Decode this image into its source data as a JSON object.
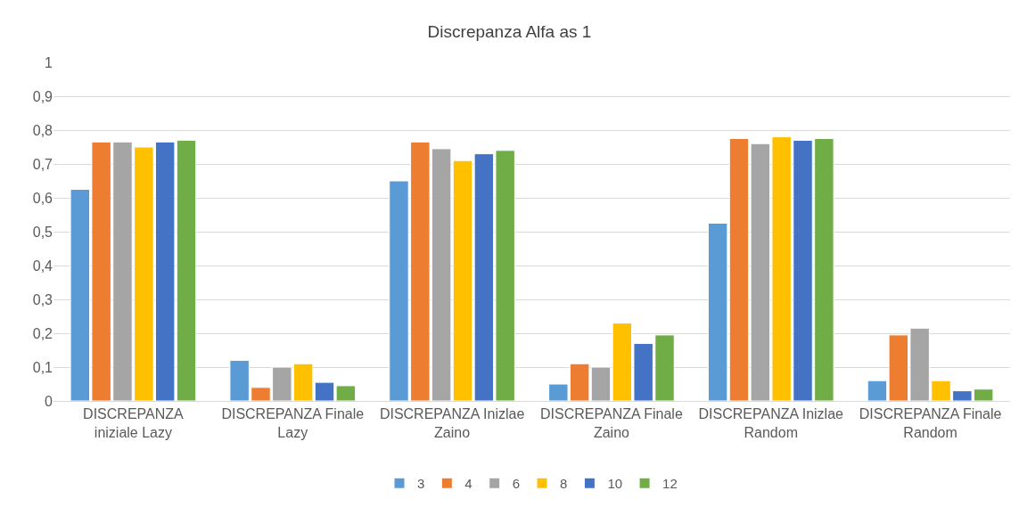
{
  "chart_data": {
    "type": "bar",
    "title": "Discrepanza Alfa as 1",
    "categories": [
      "DISCREPANZA\niniziale Lazy",
      "DISCREPANZA Finale\nLazy",
      "DISCREPANZA Inizlae\nZaino",
      "DISCREPANZA Finale\nZaino",
      "DISCREPANZA Inizlae\nRandom",
      "DISCREPANZA Finale\nRandom"
    ],
    "series": [
      {
        "name": "3",
        "color": "#5b9bd5",
        "values": [
          0.625,
          0.12,
          0.65,
          0.05,
          0.525,
          0.06
        ]
      },
      {
        "name": "4",
        "color": "#ed7d31",
        "values": [
          0.765,
          0.04,
          0.765,
          0.11,
          0.775,
          0.195
        ]
      },
      {
        "name": "6",
        "color": "#a5a5a5",
        "values": [
          0.765,
          0.1,
          0.745,
          0.1,
          0.76,
          0.215
        ]
      },
      {
        "name": "8",
        "color": "#ffc000",
        "values": [
          0.75,
          0.11,
          0.71,
          0.23,
          0.78,
          0.06
        ]
      },
      {
        "name": "10",
        "color": "#4472c4",
        "values": [
          0.765,
          0.055,
          0.73,
          0.17,
          0.77,
          0.03
        ]
      },
      {
        "name": "12",
        "color": "#70ad47",
        "values": [
          0.77,
          0.045,
          0.74,
          0.195,
          0.775,
          0.035
        ]
      }
    ],
    "ylim": [
      0,
      1
    ],
    "yticks": [
      0,
      {
        "value": 0.1,
        "label": "0,1"
      },
      {
        "value": 0.2,
        "label": "0,2"
      },
      {
        "value": 0.3,
        "label": "0,3"
      },
      {
        "value": 0.4,
        "label": "0,4"
      },
      {
        "value": 0.5,
        "label": "0,5"
      },
      {
        "value": 0.6,
        "label": "0,6"
      },
      {
        "value": 0.7,
        "label": "0,7"
      },
      {
        "value": 0.8,
        "label": "0,8"
      },
      {
        "value": 0.9,
        "label": "0,9"
      },
      1
    ],
    "grid": "y",
    "legend": "bottom"
  }
}
